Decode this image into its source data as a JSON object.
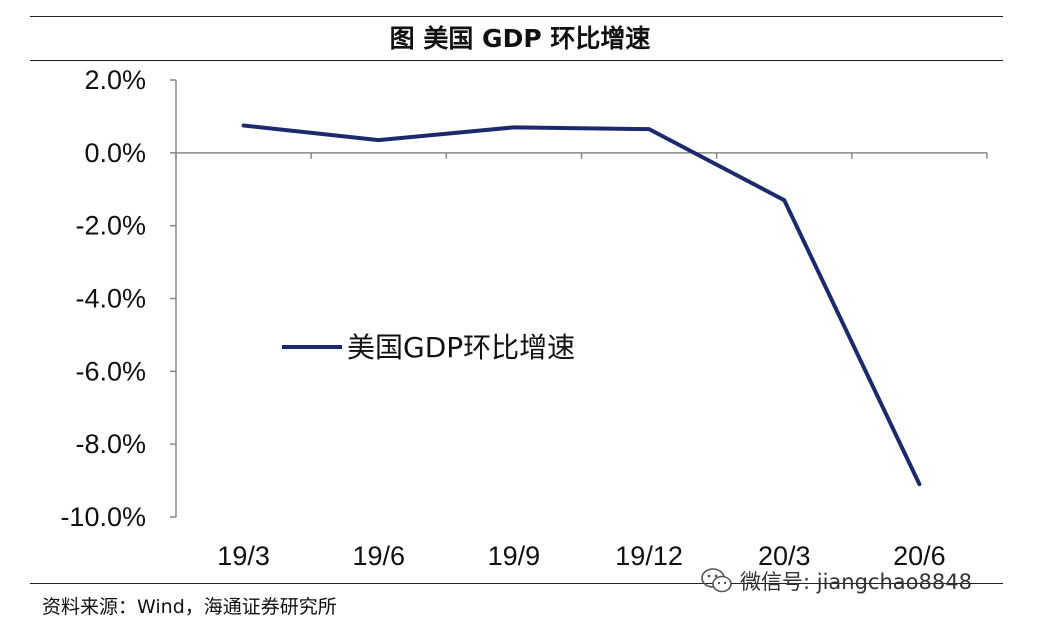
{
  "figure_title": "图  美国 GDP 环比增速",
  "source_note": "资料来源：Wind，海通证券研究所",
  "watermark": {
    "text": "微信号: jiangchao8848",
    "icon": "wechat-icon"
  },
  "colors": {
    "series_line": "#1a2a6c",
    "axis": "#888888",
    "text": "#111111"
  },
  "chart_data": {
    "type": "line",
    "title": "美国 GDP 环比增速",
    "xlabel": "",
    "ylabel": "",
    "categories": [
      "19/3",
      "19/6",
      "19/9",
      "19/12",
      "20/3",
      "20/6"
    ],
    "series": [
      {
        "name": "美国GDP环比增速",
        "values": [
          0.75,
          0.35,
          0.7,
          0.65,
          -1.3,
          -9.1
        ]
      }
    ],
    "ylim": [
      -10,
      2
    ],
    "yticks": [
      2,
      0,
      -2,
      -4,
      -6,
      -8,
      -10
    ],
    "ytick_labels": [
      "2.0%",
      "0.0%",
      "-2.0%",
      "-4.0%",
      "-6.0%",
      "-8.0%",
      "-10.0%"
    ],
    "grid": false,
    "legend_position": "center-left"
  }
}
